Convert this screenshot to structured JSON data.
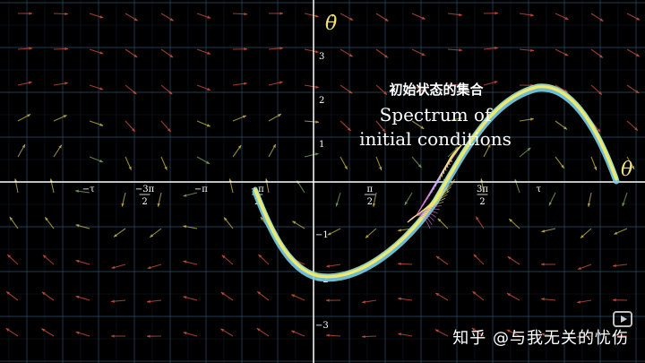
{
  "diagram": {
    "axis_labels": {
      "x": "θ",
      "y": "θ̇"
    },
    "x_ticks": [
      {
        "label": "−τ",
        "value": -6.2832
      },
      {
        "label": "−3π/2",
        "value": -4.7124
      },
      {
        "label": "−π",
        "value": -3.1416
      },
      {
        "label": "−π/2",
        "value": -1.5708
      },
      {
        "label": "π/2",
        "value": 1.5708
      },
      {
        "label": "3π/2",
        "value": 4.7124
      },
      {
        "label": "τ",
        "value": 6.2832
      }
    ],
    "y_ticks": [
      "3",
      "2",
      "1",
      "−1",
      "−2",
      "−3"
    ],
    "caption": {
      "chinese": "初始状态的集合",
      "english_line1": "Spectrum of",
      "english_line2": "initial conditions"
    },
    "colors": {
      "background": "#000000",
      "grid": "#2a4a66",
      "axis": "#ffffff",
      "trajectory_yellow": "#f3e86a",
      "trajectory_blue": "#7ad0e8",
      "trajectory_pink": "#e07ad8",
      "vector_red": "#d2513f",
      "vector_yellow": "#c9b84a",
      "vector_green": "#7fa860"
    }
  },
  "watermark": {
    "text": "知乎 @与我无关的忧伤",
    "icon": "play-icon"
  }
}
